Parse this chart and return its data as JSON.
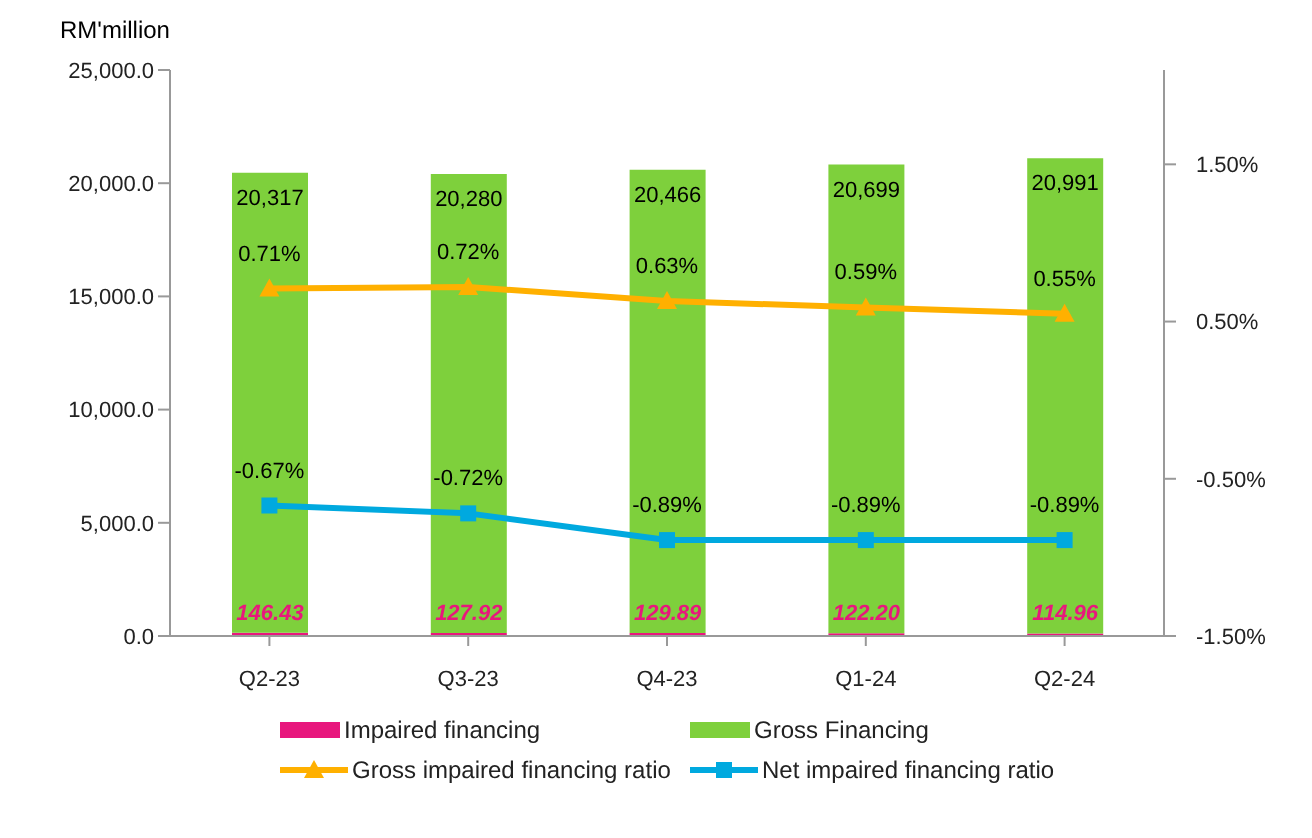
{
  "chart_data": {
    "type": "bar",
    "ylabel": "RM'million",
    "categories": [
      "Q2-23",
      "Q3-23",
      "Q4-23",
      "Q1-24",
      "Q2-24"
    ],
    "stacked": true,
    "series": [
      {
        "name": "Impaired financing",
        "color": "#e8177d",
        "values": [
          146.43,
          127.92,
          129.89,
          122.2,
          114.96
        ],
        "value_labels": [
          "146.43",
          "127.92",
          "129.89",
          "122.20",
          "114.96"
        ]
      },
      {
        "name": "Gross Financing",
        "color": "#7ed03c",
        "values": [
          20317,
          20280,
          20466,
          20699,
          20991
        ],
        "value_labels": [
          "20,317",
          "20,280",
          "20,466",
          "20,699",
          "20,991"
        ]
      },
      {
        "name": "Gross impaired financing ratio",
        "type": "line",
        "axis": "y2",
        "marker": "triangle",
        "color": "#ffb000",
        "values": [
          0.71,
          0.72,
          0.63,
          0.59,
          0.55
        ],
        "value_labels": [
          "0.71%",
          "0.72%",
          "0.63%",
          "0.59%",
          "0.55%"
        ]
      },
      {
        "name": "Net impaired financing ratio",
        "type": "line",
        "axis": "y2",
        "marker": "square",
        "color": "#00a9df",
        "values": [
          -0.67,
          -0.72,
          -0.89,
          -0.89,
          -0.89
        ],
        "value_labels": [
          "-0.67%",
          "-0.72%",
          "-0.89%",
          "-0.89%",
          "-0.89%"
        ]
      }
    ],
    "ylim": [
      0,
      25000
    ],
    "yticks": [
      {
        "value": 0,
        "label": "0.0"
      },
      {
        "value": 5000,
        "label": "5,000.0"
      },
      {
        "value": 10000,
        "label": "10,000.0"
      },
      {
        "value": 15000,
        "label": "15,000.0"
      },
      {
        "value": 20000,
        "label": "20,000.0"
      },
      {
        "value": 25000,
        "label": "25,000.0"
      }
    ],
    "y2lim": [
      -1.5,
      2.1
    ],
    "y2ticks": [
      {
        "value": -1.5,
        "label": "-1.50%"
      },
      {
        "value": -0.5,
        "label": "-0.50%"
      },
      {
        "value": 0.5,
        "label": "0.50%"
      },
      {
        "value": 1.5,
        "label": "1.50%"
      }
    ],
    "legend": "bottom"
  }
}
